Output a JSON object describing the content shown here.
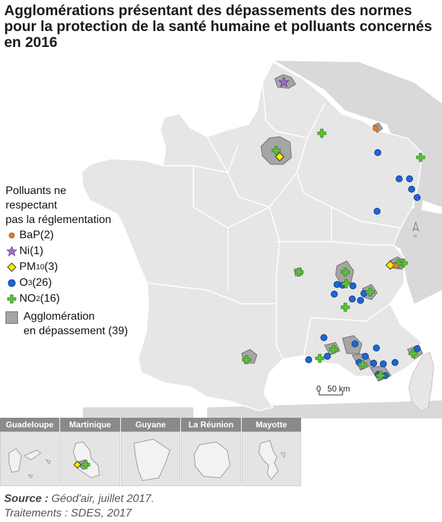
{
  "title": "Agglomérations présentant des dépassements des normes pour la protection de la santé humaine et polluants concernés en 2016",
  "legend": {
    "heading_lines": [
      "Polluants ne",
      "respectant",
      "pas la réglementation"
    ],
    "items": [
      {
        "label": "BaP",
        "sub": "",
        "count": "(2)",
        "symbol": "bap-icon",
        "color": "#e07b39"
      },
      {
        "label": "Ni",
        "sub": "",
        "count": "(1)",
        "symbol": "ni-star-icon",
        "color": "#a66bd3"
      },
      {
        "label": "PM",
        "sub": "10",
        "count": "(3)",
        "symbol": "pm10-diamond-icon",
        "color": "#ffee00"
      },
      {
        "label": "O",
        "sub": "3",
        "count": "(26)",
        "symbol": "o3-circle-icon",
        "color": "#1e66d9"
      },
      {
        "label": "NO",
        "sub": "2",
        "count": "(16)",
        "symbol": "no2-cross-icon",
        "color": "#5cc33a"
      }
    ],
    "agglomeration": {
      "line1": "Agglomération",
      "line2": "en dépassement (39)",
      "color": "#a5a5a5"
    }
  },
  "scale": {
    "zero": "0",
    "label": "50 km"
  },
  "north_label": "N",
  "insets": [
    "Guadeloupe",
    "Martinique",
    "Guyane",
    "La Réunion",
    "Mayotte"
  ],
  "source": {
    "label": "Source :",
    "text": "Géod'air, juillet 2017.",
    "treatment": "Traitements : SDES, 2017"
  },
  "colors": {
    "land": "#e6e6e6",
    "sea": "#ffffff",
    "border": "#ffffff",
    "agglomeration": "#a5a5a5"
  }
}
